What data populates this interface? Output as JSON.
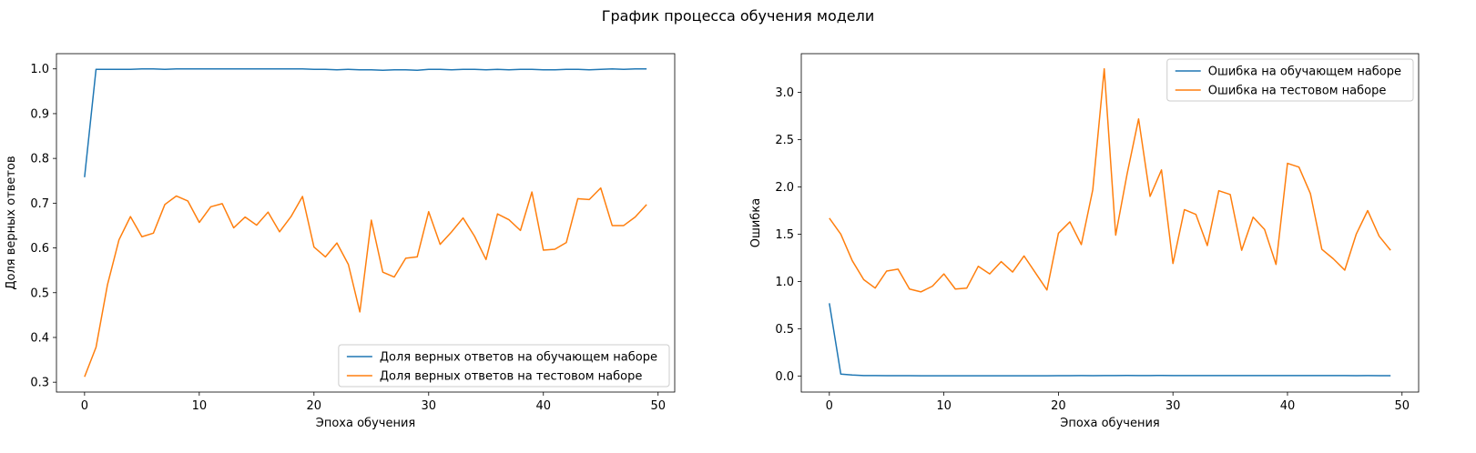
{
  "title": "График процесса обучения модели",
  "colors": {
    "train": "#1f77b4",
    "test": "#ff7f0e"
  },
  "chart_data": [
    {
      "type": "line",
      "xlabel": "Эпоха обучения",
      "ylabel": "Доля верных ответов",
      "xlim": [
        -2.45,
        51.45
      ],
      "ylim": [
        0.278,
        1.034
      ],
      "xticks": [
        0,
        10,
        20,
        30,
        40,
        50
      ],
      "yticks": [
        0.3,
        0.4,
        0.5,
        0.6,
        0.7,
        0.8,
        0.9,
        1.0
      ],
      "yticklabels": [
        "0.3",
        "0.4",
        "0.5",
        "0.6",
        "0.7",
        "0.8",
        "0.9",
        "1.0"
      ],
      "legend_position": "lower-right",
      "grid": false,
      "series": [
        {
          "name": "Доля верных ответов на обучающем наборе",
          "color": "#1f77b4",
          "x": [
            0,
            1,
            2,
            3,
            4,
            5,
            6,
            7,
            8,
            9,
            10,
            11,
            12,
            13,
            14,
            15,
            16,
            17,
            18,
            19,
            20,
            21,
            22,
            23,
            24,
            25,
            26,
            27,
            28,
            29,
            30,
            31,
            32,
            33,
            34,
            35,
            36,
            37,
            38,
            39,
            40,
            41,
            42,
            43,
            44,
            45,
            46,
            47,
            48,
            49
          ],
          "values": [
            0.758,
            0.999,
            0.999,
            0.999,
            0.999,
            1.0,
            1.0,
            0.999,
            1.0,
            1.0,
            1.0,
            1.0,
            1.0,
            1.0,
            1.0,
            1.0,
            1.0,
            1.0,
            1.0,
            1.0,
            0.999,
            0.999,
            0.998,
            0.999,
            0.998,
            0.998,
            0.997,
            0.998,
            0.998,
            0.997,
            0.999,
            0.999,
            0.998,
            0.999,
            0.999,
            0.998,
            0.999,
            0.998,
            0.999,
            0.999,
            0.998,
            0.998,
            0.999,
            0.999,
            0.998,
            0.999,
            1.0,
            0.999,
            1.0,
            1.0
          ]
        },
        {
          "name": "Доля верных ответов на тестовом наборе",
          "color": "#ff7f0e",
          "x": [
            0,
            1,
            2,
            3,
            4,
            5,
            6,
            7,
            8,
            9,
            10,
            11,
            12,
            13,
            14,
            15,
            16,
            17,
            18,
            19,
            20,
            21,
            22,
            23,
            24,
            25,
            26,
            27,
            28,
            29,
            30,
            31,
            32,
            33,
            34,
            35,
            36,
            37,
            38,
            39,
            40,
            41,
            42,
            43,
            44,
            45,
            46,
            47,
            48,
            49
          ],
          "values": [
            0.312,
            0.378,
            0.518,
            0.618,
            0.67,
            0.625,
            0.633,
            0.697,
            0.716,
            0.705,
            0.657,
            0.692,
            0.699,
            0.645,
            0.669,
            0.651,
            0.68,
            0.636,
            0.67,
            0.715,
            0.602,
            0.58,
            0.611,
            0.563,
            0.457,
            0.662,
            0.546,
            0.535,
            0.577,
            0.58,
            0.681,
            0.608,
            0.636,
            0.667,
            0.626,
            0.574,
            0.676,
            0.663,
            0.639,
            0.725,
            0.595,
            0.597,
            0.612,
            0.71,
            0.708,
            0.734,
            0.65,
            0.65,
            0.669,
            0.697
          ]
        }
      ]
    },
    {
      "type": "line",
      "xlabel": "Эпоха обучения",
      "ylabel": "Ошибка",
      "xlim": [
        -2.45,
        51.45
      ],
      "ylim": [
        -0.17,
        3.41
      ],
      "xticks": [
        0,
        10,
        20,
        30,
        40,
        50
      ],
      "yticks": [
        0.0,
        0.5,
        1.0,
        1.5,
        2.0,
        2.5,
        3.0
      ],
      "yticklabels": [
        "0.0",
        "0.5",
        "1.0",
        "1.5",
        "2.0",
        "2.5",
        "3.0"
      ],
      "legend_position": "upper-right",
      "grid": false,
      "series": [
        {
          "name": "Ошибка на обучающем наборе",
          "color": "#1f77b4",
          "x": [
            0,
            1,
            2,
            3,
            4,
            5,
            6,
            7,
            8,
            9,
            10,
            11,
            12,
            13,
            14,
            15,
            16,
            17,
            18,
            19,
            20,
            21,
            22,
            23,
            24,
            25,
            26,
            27,
            28,
            29,
            30,
            31,
            32,
            33,
            34,
            35,
            36,
            37,
            38,
            39,
            40,
            41,
            42,
            43,
            44,
            45,
            46,
            47,
            48,
            49
          ],
          "values": [
            0.77,
            0.02,
            0.01,
            0.005,
            0.004,
            0.003,
            0.003,
            0.003,
            0.002,
            0.002,
            0.002,
            0.002,
            0.002,
            0.002,
            0.002,
            0.002,
            0.002,
            0.002,
            0.002,
            0.002,
            0.003,
            0.003,
            0.004,
            0.003,
            0.005,
            0.005,
            0.006,
            0.005,
            0.005,
            0.006,
            0.004,
            0.004,
            0.005,
            0.004,
            0.004,
            0.005,
            0.004,
            0.005,
            0.004,
            0.004,
            0.005,
            0.005,
            0.004,
            0.004,
            0.005,
            0.004,
            0.003,
            0.004,
            0.003,
            0.003
          ]
        },
        {
          "name": "Ошибка на тестовом наборе",
          "color": "#ff7f0e",
          "x": [
            0,
            1,
            2,
            3,
            4,
            5,
            6,
            7,
            8,
            9,
            10,
            11,
            12,
            13,
            14,
            15,
            16,
            17,
            18,
            19,
            20,
            21,
            22,
            23,
            24,
            25,
            26,
            27,
            28,
            29,
            30,
            31,
            32,
            33,
            34,
            35,
            36,
            37,
            38,
            39,
            40,
            41,
            42,
            43,
            44,
            45,
            46,
            47,
            48,
            49
          ],
          "values": [
            1.67,
            1.5,
            1.22,
            1.02,
            0.93,
            1.11,
            1.13,
            0.92,
            0.89,
            0.95,
            1.08,
            0.92,
            0.93,
            1.16,
            1.08,
            1.21,
            1.1,
            1.27,
            1.09,
            0.91,
            1.51,
            1.63,
            1.39,
            1.97,
            3.25,
            1.49,
            2.14,
            2.72,
            1.9,
            2.18,
            1.19,
            1.76,
            1.71,
            1.38,
            1.96,
            1.92,
            1.33,
            1.68,
            1.55,
            1.18,
            2.25,
            2.21,
            1.93,
            1.34,
            1.24,
            1.12,
            1.5,
            1.75,
            1.48,
            1.33
          ]
        }
      ]
    }
  ]
}
